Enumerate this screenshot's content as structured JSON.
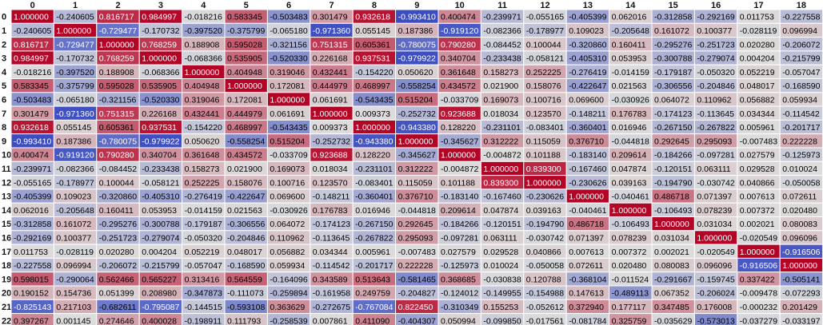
{
  "chart_data": {
    "type": "heatmap",
    "title": "",
    "xlabel": "",
    "ylabel": "",
    "columns": [
      "0",
      "1",
      "2",
      "3",
      "4",
      "5",
      "6",
      "7",
      "8",
      "9",
      "10",
      "11",
      "12",
      "13",
      "14",
      "15",
      "16",
      "17",
      "18"
    ],
    "rows": [
      "0",
      "1",
      "2",
      "3",
      "4",
      "5",
      "6",
      "7",
      "8",
      "9",
      "10",
      "11",
      "12",
      "13",
      "14",
      "15",
      "16",
      "17",
      "18",
      "19",
      "20",
      "21",
      "22"
    ],
    "cell_text": [
      [
        "1.000000",
        "-0.240605",
        "0.816717",
        "0.984997",
        "-0.018216",
        "0.583345",
        "-0.503483",
        "0.301479",
        "0.932618",
        "-0.993410",
        "0.400474",
        "-0.239971",
        "-0.055165",
        "-0.405399",
        "0.062016",
        "-0.312858",
        "-0.292169",
        "0.011753",
        "-0.227558"
      ],
      [
        "-0.240605",
        "1.000000",
        "-0.729477",
        "-0.170732",
        "-0.397520",
        "-0.375799",
        "-0.065180",
        "-0.971360",
        "0.055145",
        "0.187386",
        "-0.919120",
        "-0.082366",
        "-0.178977",
        "0.109023",
        "-0.205648",
        "0.161072",
        "0.100377",
        "-0.028119",
        "0.096994"
      ],
      [
        "0.816717",
        "-0.729477",
        "1.000000",
        "0.768259",
        "0.188908",
        "0.595028",
        "-0.321156",
        "0.751315",
        "0.605361",
        "-0.780075",
        "0.790280",
        "-0.084452",
        "0.100044",
        "-0.320860",
        "0.160411",
        "-0.295276",
        "-0.251723",
        "0.020280",
        "-0.206072"
      ],
      [
        "0.984997",
        "-0.170732",
        "0.768259",
        "1.000000",
        "-0.068366",
        "0.535905",
        "-0.520330",
        "0.226168",
        "0.937531",
        "-0.979922",
        "0.340704",
        "-0.233438",
        "-0.058121",
        "-0.405310",
        "0.053953",
        "-0.300788",
        "-0.279074",
        "0.004204",
        "-0.215799"
      ],
      [
        "-0.018216",
        "-0.397520",
        "0.188908",
        "-0.068366",
        "1.000000",
        "0.404948",
        "0.319046",
        "0.432441",
        "-0.154220",
        "0.050620",
        "0.361648",
        "0.158273",
        "0.252225",
        "-0.276419",
        "-0.014159",
        "-0.179187",
        "-0.050320",
        "0.052219",
        "-0.057047"
      ],
      [
        "0.583345",
        "-0.375799",
        "0.595028",
        "0.535905",
        "0.404948",
        "1.000000",
        "0.172081",
        "0.444979",
        "0.468997",
        "-0.558254",
        "0.434572",
        "0.021900",
        "0.158076",
        "-0.422647",
        "0.021563",
        "-0.306556",
        "-0.204846",
        "0.048017",
        "-0.168590"
      ],
      [
        "-0.503483",
        "-0.065180",
        "-0.321156",
        "-0.520330",
        "0.319046",
        "0.172081",
        "1.000000",
        "0.061691",
        "-0.543435",
        "0.515204",
        "-0.033709",
        "0.169073",
        "0.100716",
        "0.069600",
        "-0.030926",
        "0.064072",
        "0.110962",
        "0.056882",
        "0.059934"
      ],
      [
        "0.301479",
        "-0.971360",
        "0.751315",
        "0.226168",
        "0.432441",
        "0.444979",
        "0.061691",
        "1.000000",
        "0.009373",
        "-0.252732",
        "0.923688",
        "0.018034",
        "0.123570",
        "-0.148211",
        "0.176783",
        "-0.174123",
        "-0.113645",
        "0.034344",
        "-0.114542"
      ],
      [
        "0.932618",
        "0.055145",
        "0.605361",
        "0.937531",
        "-0.154220",
        "0.468997",
        "-0.543435",
        "0.009373",
        "1.000000",
        "-0.943380",
        "0.128220",
        "-0.231101",
        "-0.083401",
        "-0.360401",
        "0.016946",
        "-0.267150",
        "-0.267822",
        "0.005961",
        "-0.201717"
      ],
      [
        "-0.993410",
        "0.187386",
        "-0.780075",
        "-0.979922",
        "0.050620",
        "-0.558254",
        "0.515204",
        "-0.252732",
        "-0.943380",
        "1.000000",
        "-0.345627",
        "0.312222",
        "0.115059",
        "0.376710",
        "-0.044818",
        "0.292645",
        "0.295093",
        "-0.007483",
        "0.222228"
      ],
      [
        "0.400474",
        "-0.919120",
        "0.790280",
        "0.340704",
        "0.361648",
        "0.434572",
        "-0.033709",
        "0.923688",
        "0.128220",
        "-0.345627",
        "1.000000",
        "-0.004872",
        "0.101188",
        "-0.183140",
        "0.209614",
        "-0.184266",
        "-0.097281",
        "0.027579",
        "-0.125973"
      ],
      [
        "-0.239971",
        "-0.082366",
        "-0.084452",
        "-0.233438",
        "0.158273",
        "0.021900",
        "0.169073",
        "0.018034",
        "-0.231101",
        "0.312222",
        "-0.004872",
        "1.000000",
        "0.839300",
        "-0.167460",
        "0.047874",
        "-0.120151",
        "0.063111",
        "0.029528",
        "0.010024"
      ],
      [
        "-0.055165",
        "-0.178977",
        "0.100044",
        "-0.058121",
        "0.252225",
        "0.158076",
        "0.100716",
        "0.123570",
        "-0.083401",
        "0.115059",
        "0.101188",
        "0.839300",
        "1.000000",
        "-0.230626",
        "0.039163",
        "-0.194790",
        "-0.030742",
        "0.040866",
        "-0.050058"
      ],
      [
        "-0.405399",
        "0.109023",
        "-0.320860",
        "-0.405310",
        "-0.276419",
        "-0.422647",
        "0.069600",
        "-0.148211",
        "-0.360401",
        "0.376710",
        "-0.183140",
        "-0.167460",
        "-0.230626",
        "1.000000",
        "-0.040461",
        "0.486718",
        "0.071397",
        "0.007613",
        "0.072611"
      ],
      [
        "0.062016",
        "-0.205648",
        "0.160411",
        "0.053953",
        "-0.014159",
        "0.021563",
        "-0.030926",
        "0.176783",
        "0.016946",
        "-0.044818",
        "0.209614",
        "0.047874",
        "0.039163",
        "-0.040461",
        "1.000000",
        "-0.106493",
        "0.078239",
        "0.007372",
        "0.020480"
      ],
      [
        "-0.312858",
        "0.161072",
        "-0.295276",
        "-0.300788",
        "-0.179187",
        "-0.306556",
        "0.064072",
        "-0.174123",
        "-0.267150",
        "0.292645",
        "-0.184266",
        "-0.120151",
        "-0.194790",
        "0.486718",
        "-0.106493",
        "1.000000",
        "0.031034",
        "0.002021",
        "0.080083"
      ],
      [
        "-0.292169",
        "0.100377",
        "-0.251723",
        "-0.279074",
        "-0.050320",
        "-0.204846",
        "0.110962",
        "-0.113645",
        "-0.267822",
        "0.295093",
        "-0.097281",
        "0.063111",
        "-0.030742",
        "0.071397",
        "0.078239",
        "0.031034",
        "1.000000",
        "-0.020549",
        "0.096096"
      ],
      [
        "0.011753",
        "-0.028119",
        "0.020280",
        "0.004204",
        "0.052219",
        "0.048017",
        "0.056882",
        "0.034344",
        "0.005961",
        "-0.007483",
        "0.027579",
        "0.029528",
        "0.040866",
        "0.007613",
        "0.007372",
        "0.002021",
        "-0.020549",
        "1.000000",
        "-0.916506"
      ],
      [
        "-0.227558",
        "0.096994",
        "-0.206072",
        "-0.215799",
        "-0.057047",
        "-0.168590",
        "0.059934",
        "-0.114542",
        "-0.201717",
        "0.222228",
        "-0.125973",
        "0.010024",
        "-0.050058",
        "0.072611",
        "0.020480",
        "0.080083",
        "0.096096",
        "-0.916506",
        "1.000000"
      ],
      [
        "0.598015",
        "-0.290064",
        "0.562466",
        "0.565227",
        "0.313416",
        "0.564559",
        "-0.164096",
        "0.343589",
        "0.513643",
        "-0.581465",
        "0.368685",
        "-0.030838",
        "0.120788",
        "-0.368104",
        "-0.011524",
        "-0.291667",
        "-0.159745",
        "0.337422",
        "-0.505141"
      ],
      [
        "0.190152",
        "0.154736",
        "0.051399",
        "0.208980",
        "-0.347873",
        "-0.111073",
        "-0.259894",
        "-0.161958",
        "0.249759",
        "-0.204827",
        "-0.124012",
        "-0.149955",
        "-0.154988",
        "0.147613",
        "-0.489113",
        "0.067352",
        "-0.206024",
        "-0.009478",
        "-0.072293"
      ],
      [
        "-0.825143",
        "0.217103",
        "-0.682611",
        "-0.795087",
        "-0.144515",
        "-0.593108",
        "0.363629",
        "-0.272675",
        "-0.767084",
        "0.822450",
        "-0.310349",
        "0.155253",
        "-0.052612",
        "0.372940",
        "0.177117",
        "0.347485",
        "0.176008",
        "-0.000232",
        "0.201429"
      ],
      [
        "0.397267",
        "0.001145",
        "0.274646",
        "0.400028",
        "-0.198911",
        "0.111793",
        "-0.258539",
        "0.007861",
        "0.411090",
        "-0.404307",
        "0.050994",
        "-0.099850",
        "-0.017561",
        "-0.081784",
        "0.325759",
        "-0.035629",
        "-0.573013",
        "-0.037279",
        "-0.033197"
      ]
    ],
    "colors": {
      "negative": "#3b4cc0",
      "neutral": "#dddddd",
      "positive": "#b40426",
      "dark_text": "#000000",
      "light_text": "#ffffff"
    },
    "value_range": [
      -1,
      1
    ],
    "grid": true
  }
}
